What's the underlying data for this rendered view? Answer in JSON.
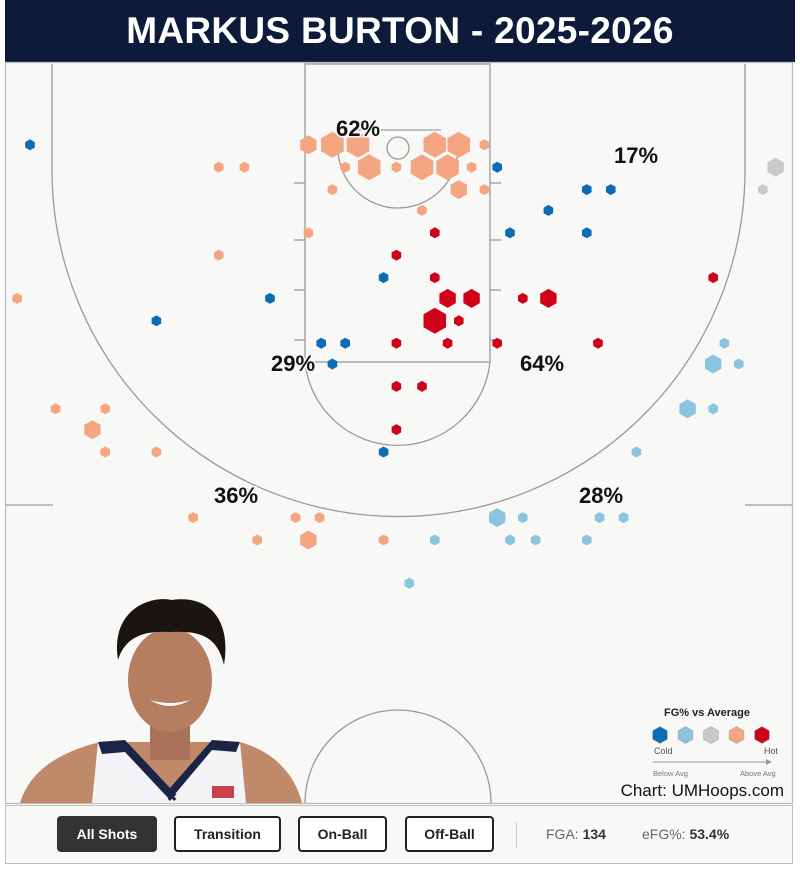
{
  "title": "MARKUS BURTON - 2025-2026",
  "colors": {
    "title_bg": "#0d1a3a",
    "cold": "#0b6db5",
    "cool": "#8cc4e0",
    "average": "#c9c9c9",
    "warm": "#f4a582",
    "hot": "#d0021b"
  },
  "chart_data": {
    "type": "hexbin-shot-chart",
    "units": "feet from hoop (x: lateral, y: toward half court)",
    "size_levels": "1 = fewest attempts, 3 = most attempts",
    "color_metric": "FG% vs Average",
    "hexes": [
      {
        "x": -5.6,
        "y": -0.2,
        "size": 2,
        "heat": "warm"
      },
      {
        "x": -4.1,
        "y": -0.2,
        "size": 3,
        "heat": "warm"
      },
      {
        "x": -2.5,
        "y": -0.2,
        "size": 3,
        "heat": "warm"
      },
      {
        "x": -1.8,
        "y": 1.2,
        "size": 3,
        "heat": "warm"
      },
      {
        "x": 2.3,
        "y": -0.2,
        "size": 3,
        "heat": "warm"
      },
      {
        "x": 3.8,
        "y": -0.2,
        "size": 3,
        "heat": "warm"
      },
      {
        "x": 1.5,
        "y": 1.2,
        "size": 3,
        "heat": "warm"
      },
      {
        "x": 3.1,
        "y": 1.2,
        "size": 3,
        "heat": "warm"
      },
      {
        "x": 3.8,
        "y": 2.6,
        "size": 2,
        "heat": "warm"
      },
      {
        "x": 5.4,
        "y": -0.2,
        "size": 1,
        "heat": "warm"
      },
      {
        "x": -3.3,
        "y": 1.2,
        "size": 1,
        "heat": "warm"
      },
      {
        "x": -0.1,
        "y": 1.2,
        "size": 1,
        "heat": "warm"
      },
      {
        "x": 4.6,
        "y": 1.2,
        "size": 1,
        "heat": "warm"
      },
      {
        "x": -4.1,
        "y": 2.6,
        "size": 1,
        "heat": "warm"
      },
      {
        "x": 5.4,
        "y": 2.6,
        "size": 1,
        "heat": "warm"
      },
      {
        "x": 1.5,
        "y": 3.9,
        "size": 1,
        "heat": "warm"
      },
      {
        "x": -5.6,
        "y": 5.3,
        "size": 1,
        "heat": "warm"
      },
      {
        "x": -11.2,
        "y": 1.2,
        "size": 1,
        "heat": "warm"
      },
      {
        "x": -9.6,
        "y": 1.2,
        "size": 1,
        "heat": "warm"
      },
      {
        "x": -11.2,
        "y": 6.7,
        "size": 1,
        "heat": "warm"
      },
      {
        "x": -23.8,
        "y": 9.4,
        "size": 1,
        "heat": "warm"
      },
      {
        "x": -21.4,
        "y": 16.3,
        "size": 1,
        "heat": "warm"
      },
      {
        "x": -18.3,
        "y": 16.3,
        "size": 1,
        "heat": "warm"
      },
      {
        "x": -19.1,
        "y": 17.6,
        "size": 2,
        "heat": "warm"
      },
      {
        "x": -18.3,
        "y": 19.0,
        "size": 1,
        "heat": "warm"
      },
      {
        "x": -15.1,
        "y": 19.0,
        "size": 1,
        "heat": "warm"
      },
      {
        "x": -12.8,
        "y": 23.1,
        "size": 1,
        "heat": "warm"
      },
      {
        "x": -6.4,
        "y": 23.1,
        "size": 1,
        "heat": "warm"
      },
      {
        "x": -4.9,
        "y": 23.1,
        "size": 1,
        "heat": "warm"
      },
      {
        "x": -8.8,
        "y": 24.5,
        "size": 1,
        "heat": "warm"
      },
      {
        "x": -5.6,
        "y": 24.5,
        "size": 2,
        "heat": "warm"
      },
      {
        "x": -0.9,
        "y": 24.5,
        "size": 1,
        "heat": "warm"
      },
      {
        "x": 2.3,
        "y": 5.3,
        "size": 1,
        "heat": "hot"
      },
      {
        "x": -0.1,
        "y": 6.7,
        "size": 1,
        "heat": "hot"
      },
      {
        "x": 2.3,
        "y": 8.1,
        "size": 1,
        "heat": "hot"
      },
      {
        "x": 3.1,
        "y": 9.4,
        "size": 2,
        "heat": "hot"
      },
      {
        "x": 4.6,
        "y": 9.4,
        "size": 2,
        "heat": "hot"
      },
      {
        "x": 2.3,
        "y": 10.8,
        "size": 3,
        "heat": "hot"
      },
      {
        "x": 3.8,
        "y": 10.8,
        "size": 1,
        "heat": "hot"
      },
      {
        "x": -0.1,
        "y": 12.2,
        "size": 1,
        "heat": "hot"
      },
      {
        "x": 3.1,
        "y": 12.2,
        "size": 1,
        "heat": "hot"
      },
      {
        "x": 6.2,
        "y": 12.2,
        "size": 1,
        "heat": "hot"
      },
      {
        "x": 7.8,
        "y": 9.4,
        "size": 1,
        "heat": "hot"
      },
      {
        "x": 9.4,
        "y": 9.4,
        "size": 2,
        "heat": "hot"
      },
      {
        "x": 12.5,
        "y": 12.2,
        "size": 1,
        "heat": "hot"
      },
      {
        "x": 19.7,
        "y": 8.1,
        "size": 1,
        "heat": "hot"
      },
      {
        "x": -0.1,
        "y": 14.9,
        "size": 1,
        "heat": "hot"
      },
      {
        "x": 1.5,
        "y": 14.9,
        "size": 1,
        "heat": "hot"
      },
      {
        "x": -0.1,
        "y": 17.6,
        "size": 1,
        "heat": "hot"
      },
      {
        "x": -23.0,
        "y": -0.2,
        "size": 1,
        "heat": "cold"
      },
      {
        "x": -15.1,
        "y": 10.8,
        "size": 1,
        "heat": "cold"
      },
      {
        "x": -8.0,
        "y": 9.4,
        "size": 1,
        "heat": "cold"
      },
      {
        "x": -0.9,
        "y": 8.1,
        "size": 1,
        "heat": "cold"
      },
      {
        "x": -4.8,
        "y": 12.2,
        "size": 1,
        "heat": "cold"
      },
      {
        "x": -3.3,
        "y": 12.2,
        "size": 1,
        "heat": "cold"
      },
      {
        "x": -4.1,
        "y": 13.5,
        "size": 1,
        "heat": "cold"
      },
      {
        "x": -0.9,
        "y": 19.0,
        "size": 1,
        "heat": "cold"
      },
      {
        "x": 6.2,
        "y": 1.2,
        "size": 1,
        "heat": "cold"
      },
      {
        "x": 9.4,
        "y": 3.9,
        "size": 1,
        "heat": "cold"
      },
      {
        "x": 11.8,
        "y": 2.6,
        "size": 1,
        "heat": "cold"
      },
      {
        "x": 13.3,
        "y": 2.6,
        "size": 1,
        "heat": "cold"
      },
      {
        "x": 11.8,
        "y": 5.3,
        "size": 1,
        "heat": "cold"
      },
      {
        "x": 7.0,
        "y": 5.3,
        "size": 1,
        "heat": "cold"
      },
      {
        "x": 20.4,
        "y": 12.2,
        "size": 1,
        "heat": "cool"
      },
      {
        "x": 19.7,
        "y": 13.5,
        "size": 2,
        "heat": "cool"
      },
      {
        "x": 21.3,
        "y": 13.5,
        "size": 1,
        "heat": "cool"
      },
      {
        "x": 18.1,
        "y": 16.3,
        "size": 2,
        "heat": "cool"
      },
      {
        "x": 19.7,
        "y": 16.3,
        "size": 1,
        "heat": "cool"
      },
      {
        "x": 14.9,
        "y": 19.0,
        "size": 1,
        "heat": "cool"
      },
      {
        "x": 6.2,
        "y": 23.1,
        "size": 2,
        "heat": "cool"
      },
      {
        "x": 7.8,
        "y": 23.1,
        "size": 1,
        "heat": "cool"
      },
      {
        "x": 12.6,
        "y": 23.1,
        "size": 1,
        "heat": "cool"
      },
      {
        "x": 14.1,
        "y": 23.1,
        "size": 1,
        "heat": "cool"
      },
      {
        "x": 2.3,
        "y": 24.5,
        "size": 1,
        "heat": "cool"
      },
      {
        "x": 7.0,
        "y": 24.5,
        "size": 1,
        "heat": "cool"
      },
      {
        "x": 8.6,
        "y": 24.5,
        "size": 1,
        "heat": "cool"
      },
      {
        "x": 11.8,
        "y": 24.5,
        "size": 1,
        "heat": "cool"
      },
      {
        "x": 0.7,
        "y": 27.2,
        "size": 1,
        "heat": "cool"
      },
      {
        "x": 23.6,
        "y": 1.2,
        "size": 2,
        "heat": "average"
      },
      {
        "x": 22.8,
        "y": 2.6,
        "size": 1,
        "heat": "average"
      }
    ],
    "zones": [
      {
        "zone": "rim",
        "label": "62%"
      },
      {
        "zone": "right-baseline-mid",
        "label": "17%"
      },
      {
        "zone": "left-elbow-mid",
        "label": "29%"
      },
      {
        "zone": "right-elbow-mid",
        "label": "64%"
      },
      {
        "zone": "left-three",
        "label": "36%"
      },
      {
        "zone": "right-three",
        "label": "28%"
      }
    ],
    "legend": {
      "title": "FG% vs Average",
      "scale": [
        "cold",
        "cool",
        "average",
        "warm",
        "hot"
      ],
      "cold_label": "Cold",
      "hot_label": "Hot",
      "below_label": "Below Avg",
      "above_label": "Above Avg"
    }
  },
  "credit": "Chart: UMHoops.com",
  "filters": [
    {
      "label": "All Shots",
      "active": true
    },
    {
      "label": "Transition",
      "active": false
    },
    {
      "label": "On-Ball",
      "active": false
    },
    {
      "label": "Off-Ball",
      "active": false
    }
  ],
  "stats": {
    "fga_label": "FGA:",
    "fga_value": "134",
    "efg_label": "eFG%:",
    "efg_value": "53.4%"
  }
}
